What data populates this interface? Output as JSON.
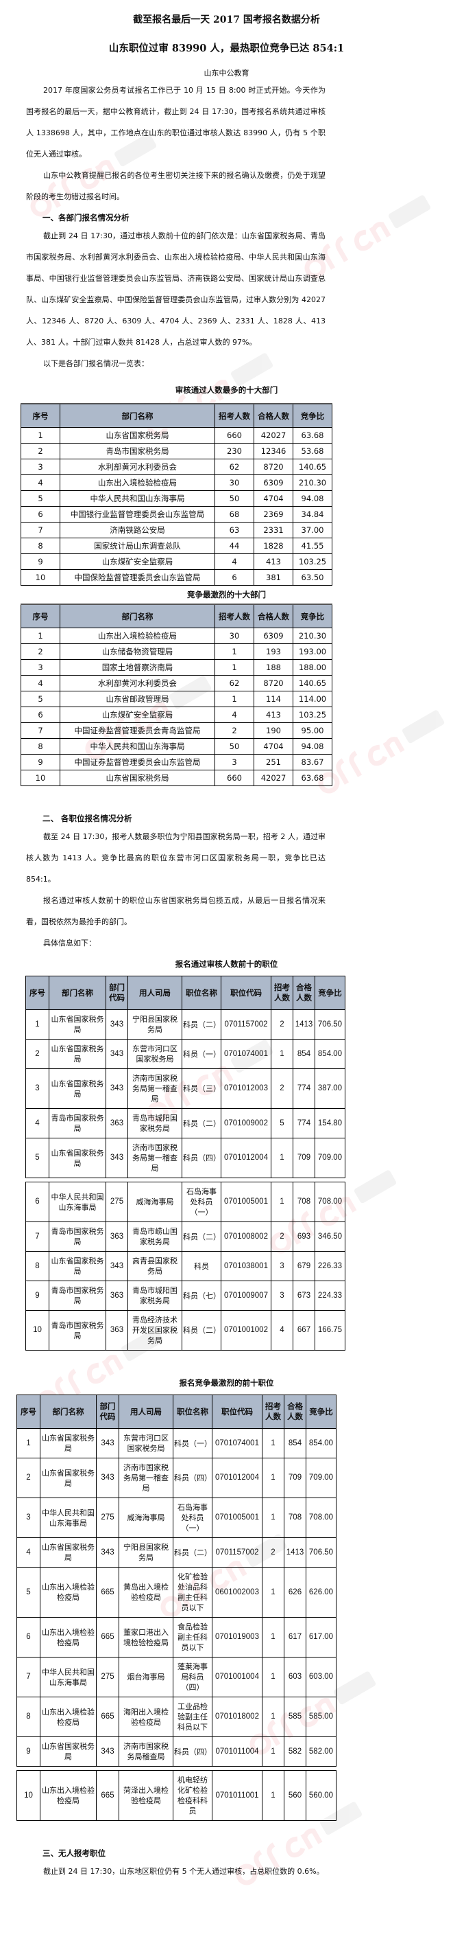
{
  "watermark": {
    "logo": "offcn",
    "text": "中公教育",
    "color": "#e6505a"
  },
  "header": {
    "title": "截至报名最后一天 2017 国考报名数据分析",
    "subtitle": "山东职位过审 83990 人，最热职位竞争已达 854:1",
    "author": "山东中公教育"
  },
  "intro": {
    "p1": "2017 年度国家公务员考试报名工作已于 10 月 15 日 8:00 时正式开始。今天作为国考报名的最后一天，据中公教育统计，截止到 24 日 17:30，国考报名系统共通过审核人 1338698 人，其中，工作地点在山东的职位通过审核人数达 83990 人，仍有 5 个职位无人通过审核。",
    "p2": "山东中公教育提醒已报名的各位考生密切关注接下来的报名确认及缴费，仍处于观望阶段的考生勿错过报名时间。"
  },
  "section1": {
    "heading": "一、各部门报名情况分析",
    "p1": "截止到 24 日 17:30，通过审核人数前十位的部门依次是：山东省国家税务局、青岛市国家税务局、水利部黄河水利委员会、山东出入境检验检疫局、中华人民共和国山东海事局、中国银行业监督管理委员会山东监管局、济南铁路公安局、国家统计局山东调查总队、山东煤矿安全监察局、中国保险监督管理委员会山东监管局，过审人数分别为 42027 人、12346 人、8720 人、6309 人、4704 人、2369 人、2331 人、1828 人、413 人、381 人。十部门过审人数共 81428 人，占总过审人数的 97%。",
    "p2": "以下是各部门报名情况一览表："
  },
  "dept_headers": [
    "序号",
    "部门名称",
    "招考人数",
    "合格人数",
    "竞争比"
  ],
  "table_most": {
    "title": "审核通过人数最多的十大部门",
    "rows": [
      [
        "1",
        "山东省国家税务局",
        "660",
        "42027",
        "63.68"
      ],
      [
        "2",
        "青岛市国家税务局",
        "230",
        "12346",
        "53.68"
      ],
      [
        "3",
        "水利部黄河水利委员会",
        "62",
        "8720",
        "140.65"
      ],
      [
        "4",
        "山东出入境检验检疫局",
        "30",
        "6309",
        "210.30"
      ],
      [
        "5",
        "中华人民共和国山东海事局",
        "50",
        "4704",
        "94.08"
      ],
      [
        "6",
        "中国银行业监督管理委员会山东监管局",
        "68",
        "2369",
        "34.84"
      ],
      [
        "7",
        "济南铁路公安局",
        "63",
        "2331",
        "37.00"
      ],
      [
        "8",
        "国家统计局山东调查总队",
        "44",
        "1828",
        "41.55"
      ],
      [
        "9",
        "山东煤矿安全监察局",
        "4",
        "413",
        "103.25"
      ],
      [
        "10",
        "中国保险监督管理委员会山东监管局",
        "6",
        "381",
        "63.50"
      ]
    ]
  },
  "table_fierce": {
    "title": "竞争最激烈的十大部门",
    "rows": [
      [
        "1",
        "山东出入境检验检疫局",
        "30",
        "6309",
        "210.30"
      ],
      [
        "2",
        "山东储备物资管理局",
        "1",
        "193",
        "193.00"
      ],
      [
        "3",
        "国家土地督察济南局",
        "1",
        "188",
        "188.00"
      ],
      [
        "4",
        "水利部黄河水利委员会",
        "62",
        "8720",
        "140.65"
      ],
      [
        "5",
        "山东省邮政管理局",
        "1",
        "114",
        "114.00"
      ],
      [
        "6",
        "山东煤矿安全监察局",
        "4",
        "413",
        "103.25"
      ],
      [
        "7",
        "中国证券监督管理委员会青岛监管局",
        "2",
        "190",
        "95.00"
      ],
      [
        "8",
        "中华人民共和国山东海事局",
        "50",
        "4704",
        "94.08"
      ],
      [
        "9",
        "中国证券监督管理委员会山东监管局",
        "3",
        "251",
        "83.67"
      ],
      [
        "10",
        "山东省国家税务局",
        "660",
        "42027",
        "63.68"
      ]
    ]
  },
  "section2": {
    "heading": "二、 各职位报名情况分析",
    "p1": "截至 24 日 17:30，报考人数最多职位为宁阳县国家税务局一职，招考 2 人，通过审核人数为 1413 人。竞争比最高的职位东营市河口区国家税务局一职，竞争比已达 854:1。",
    "p2": "报名通过审核人数前十的职位山东省国家税务局包揽五成，从最后一日报名情况来看，国税依然为最抢手的部门。",
    "p3": "具体信息如下："
  },
  "pos_headers": [
    "序号",
    "部门名称",
    "部门代码",
    "用人司局",
    "职位名称",
    "职位代码",
    "招考人数",
    "合格人数",
    "竞争比"
  ],
  "table_pos_most": {
    "title": "报名通过审核人数前十的职位",
    "rows": [
      [
        "1",
        "山东省国家税务局",
        "343",
        "宁阳县国家税务局",
        "科员（二）",
        "0701157002",
        "2",
        "1413",
        "706.50"
      ],
      [
        "2",
        "山东省国家税务局",
        "343",
        "东营市河口区国家税务局",
        "科员（一）",
        "0701074001",
        "1",
        "854",
        "854.00"
      ],
      [
        "3",
        "山东省国家税务局",
        "343",
        "济南市国家税务局第一稽查局",
        "科员（三）",
        "0701012003",
        "2",
        "774",
        "387.00"
      ],
      [
        "4",
        "青岛市国家税务局",
        "363",
        "青岛市城阳国家税务局",
        "科员（二）",
        "0701009002",
        "5",
        "774",
        "154.80"
      ],
      [
        "5",
        "山东省国家税务局",
        "343",
        "济南市国家税务局第一稽查局",
        "科员（四）",
        "0701012004",
        "1",
        "709",
        "709.00"
      ],
      [
        "6",
        "中华人民共和国山东海事局",
        "275",
        "威海海事局",
        "石岛海事处科员（一）",
        "0701005001",
        "1",
        "708",
        "708.00"
      ],
      [
        "7",
        "青岛市国家税务局",
        "363",
        "青岛市崂山国家税务局",
        "科员（二）",
        "0701008002",
        "2",
        "693",
        "346.50"
      ],
      [
        "8",
        "山东省国家税务局",
        "343",
        "高青县国家税务局",
        "科员",
        "0701038001",
        "3",
        "679",
        "226.33"
      ],
      [
        "9",
        "青岛市国家税务局",
        "363",
        "青岛市城阳国家税务局",
        "科员（七）",
        "0701009007",
        "3",
        "673",
        "224.33"
      ],
      [
        "10",
        "青岛市国家税务局",
        "363",
        "青岛经济技术开发区国家税务局",
        "科员（二）",
        "0701001002",
        "4",
        "667",
        "166.75"
      ]
    ]
  },
  "table_pos_fierce": {
    "title": "报名竞争最激烈的前十职位",
    "rows": [
      [
        "1",
        "山东省国家税务局",
        "343",
        "东营市河口区国家税务局",
        "科员（一）",
        "0701074001",
        "1",
        "854",
        "854.00"
      ],
      [
        "2",
        "山东省国家税务局",
        "343",
        "济南市国家税务局第一稽查局",
        "科员（四）",
        "0701012004",
        "1",
        "709",
        "709.00"
      ],
      [
        "3",
        "中华人民共和国山东海事局",
        "275",
        "威海海事局",
        "石岛海事处科员（一）",
        "0701005001",
        "1",
        "708",
        "708.00"
      ],
      [
        "4",
        "山东省国家税务局",
        "343",
        "宁阳县国家税务局",
        "科员（二）",
        "0701157002",
        "2",
        "1413",
        "706.50"
      ],
      [
        "5",
        "山东出入境检验检疫局",
        "665",
        "黄岛出入境检验检疫局",
        "化矿检验处油品科副主任科员以下",
        "0601002003",
        "1",
        "626",
        "626.00"
      ],
      [
        "6",
        "山东出入境检验检疫局",
        "665",
        "董家口港出入境检验检疫局",
        "食品检验副主任科员以下",
        "0701019003",
        "1",
        "617",
        "617.00"
      ],
      [
        "7",
        "中华人民共和国山东海事局",
        "275",
        "烟台海事局",
        "蓬莱海事局科员（四）",
        "0701001004",
        "1",
        "603",
        "603.00"
      ],
      [
        "8",
        "山东出入境检验检疫局",
        "665",
        "海阳出入境检验检疫局",
        "工业品检验副主任科员以下",
        "0701018002",
        "1",
        "585",
        "585.00"
      ],
      [
        "9",
        "山东省国家税务局",
        "343",
        "济南市国家税务局稽查局",
        "科员（四）",
        "0701011004",
        "1",
        "582",
        "582.00"
      ],
      [
        "10",
        "山东出入境检验检疫局",
        "665",
        "菏泽出入境检验检疫局",
        "机电轻纺化矿检验检疫科科员",
        "0701011001",
        "1",
        "560",
        "560.00"
      ]
    ]
  },
  "section3": {
    "heading": "三、无人报考职位",
    "p1": "截止到 24 日 17:30，山东地区职位仍有 5 个无人通过审核，占总职位数的 0.6%。"
  }
}
